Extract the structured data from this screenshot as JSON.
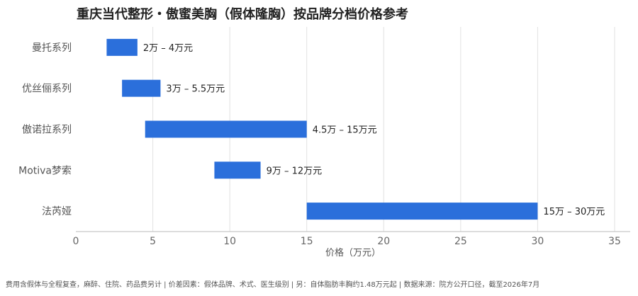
{
  "chart_data": {
    "type": "bar",
    "title": "重庆当代整形・傲蜜美胸（假体隆胸）按品牌分档价格参考",
    "xlabel": "价格（万元）",
    "ylabel": "",
    "xlim": [
      0,
      35
    ],
    "xticks": [
      0,
      5,
      10,
      15,
      20,
      25,
      30,
      35
    ],
    "grid": true,
    "orientation": "horizontal-range",
    "color": "#2b6fdb",
    "categories": [
      "曼托系列",
      "优丝俪系列",
      "傲诺拉系列",
      "Motiva梦索",
      "法芮娅"
    ],
    "ranges": [
      [
        2,
        4
      ],
      [
        3,
        5.5
      ],
      [
        4.5,
        15
      ],
      [
        9,
        12
      ],
      [
        15,
        30
      ]
    ],
    "data_labels": [
      "2万 – 4万元",
      "3万 – 5.5万元",
      "4.5万 – 15万元",
      "9万 – 12万元",
      "15万 – 30万元"
    ]
  },
  "footer": "费用含假体与全程复查，麻醉、住院、药品费另计 | 价差因素：假体品牌、术式、医生级别 | 另：自体脂肪丰胸约1.48万元起 | 数据来源：院方公开口径，截至2026年7月"
}
